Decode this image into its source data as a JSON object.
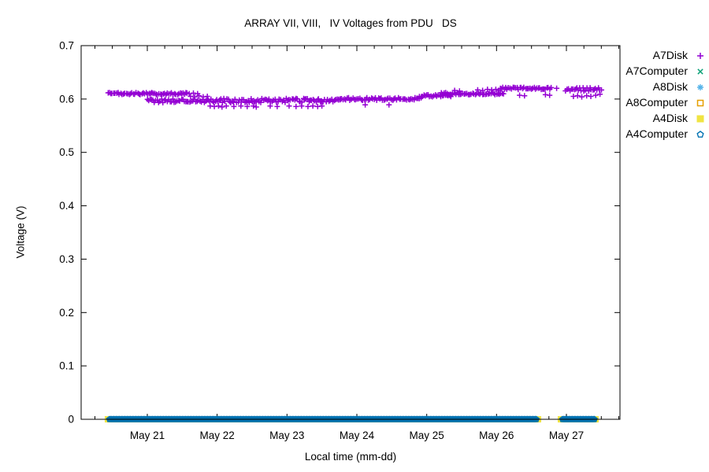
{
  "chart_data": {
    "type": "scatter",
    "title": "ARRAY VII, VIII,   IV Voltages from PDU   DS",
    "xlabel": "Local time (mm-dd)",
    "ylabel": "Voltage (V)",
    "grid": false,
    "legend_position": "outside-top-right",
    "x_axis": {
      "unit": "day-of-May",
      "min": 20.053,
      "max": 27.767,
      "major_ticks": [
        21,
        22,
        23,
        24,
        25,
        26,
        27
      ],
      "major_tick_labels": [
        "May 21",
        "May 22",
        "May 23",
        "May 24",
        "May 25",
        "May 26",
        "May 27"
      ],
      "minor_tick_interval": 0.25
    },
    "y_axis": {
      "min": 0,
      "max": 0.7,
      "major_ticks": [
        0,
        0.1,
        0.2,
        0.3,
        0.4,
        0.5,
        0.6,
        0.7
      ],
      "tick_labels": [
        "0",
        "0.1",
        "0.2",
        "0.3",
        "0.4",
        "0.5",
        "0.6",
        "0.7"
      ]
    },
    "series": [
      {
        "name": "A7Disk",
        "color": "#9400d3",
        "marker": "plus",
        "bands": [
          [
            20.436,
            21.58,
            0.61,
            0.002
          ],
          [
            21.0,
            23.78,
            0.597,
            0.004
          ],
          [
            23.74,
            24.93,
            0.6,
            0.0025
          ],
          [
            24.9,
            25.35,
            0.606,
            0.002
          ],
          [
            25.21,
            26.12,
            0.61,
            0.002
          ],
          [
            26.05,
            26.79,
            0.62,
            0.002
          ],
          [
            26.99,
            27.5,
            0.618,
            0.003
          ]
        ],
        "points": [
          [
            21.9,
            0.587
          ],
          [
            21.96,
            0.586
          ],
          [
            22.02,
            0.587
          ],
          [
            22.07,
            0.585
          ],
          [
            22.13,
            0.587
          ],
          [
            22.24,
            0.586
          ],
          [
            22.34,
            0.587
          ],
          [
            22.43,
            0.586
          ],
          [
            22.52,
            0.587
          ],
          [
            22.56,
            0.585
          ],
          [
            22.76,
            0.587
          ],
          [
            22.86,
            0.586
          ],
          [
            23.03,
            0.587
          ],
          [
            23.13,
            0.586
          ],
          [
            23.21,
            0.587
          ],
          [
            23.3,
            0.586
          ],
          [
            23.37,
            0.587
          ],
          [
            23.44,
            0.586
          ],
          [
            23.5,
            0.587
          ],
          [
            24.12,
            0.589
          ],
          [
            24.46,
            0.589
          ],
          [
            21.6,
            0.61
          ],
          [
            21.66,
            0.611
          ],
          [
            21.72,
            0.61
          ],
          [
            21.62,
            0.605
          ],
          [
            21.68,
            0.604
          ],
          [
            21.74,
            0.606
          ],
          [
            21.8,
            0.604
          ],
          [
            21.86,
            0.605
          ],
          [
            25.4,
            0.616
          ],
          [
            25.47,
            0.615
          ],
          [
            25.73,
            0.617
          ],
          [
            25.8,
            0.616
          ],
          [
            25.87,
            0.618
          ],
          [
            25.93,
            0.617
          ],
          [
            25.99,
            0.618
          ],
          [
            26.03,
            0.616
          ],
          [
            26.86,
            0.62
          ],
          [
            26.33,
            0.607
          ],
          [
            26.4,
            0.606
          ],
          [
            26.7,
            0.608
          ],
          [
            26.76,
            0.607
          ],
          [
            27.1,
            0.605
          ],
          [
            27.16,
            0.606
          ],
          [
            27.22,
            0.604
          ],
          [
            27.29,
            0.606
          ],
          [
            27.35,
            0.605
          ],
          [
            27.42,
            0.607
          ],
          [
            27.48,
            0.609
          ]
        ]
      },
      {
        "name": "A7Computer",
        "color": "#009e73",
        "marker": "cross",
        "bands": [],
        "points": []
      },
      {
        "name": "A8Disk",
        "color": "#56b4e9",
        "marker": "asterisk",
        "bands": [],
        "points": []
      },
      {
        "name": "A8Computer",
        "color": "#e69f00",
        "marker": "open-square",
        "bands": [],
        "points": []
      },
      {
        "name": "A4Disk",
        "color": "#f0e442",
        "marker": "filled-square",
        "bands": [
          [
            20.436,
            26.594,
            0.0,
            0
          ],
          [
            26.921,
            27.428,
            0.0,
            0
          ]
        ],
        "points": []
      },
      {
        "name": "A4Computer",
        "color": "#0072b2",
        "marker": "open-pentagon",
        "bands": [
          [
            20.436,
            26.594,
            0.0,
            0
          ],
          [
            26.921,
            27.428,
            0.0,
            0
          ]
        ],
        "points": []
      }
    ]
  },
  "legend": {
    "items": [
      {
        "label": "A7Disk",
        "marker": "plus",
        "color": "#9400d3"
      },
      {
        "label": "A7Computer",
        "marker": "cross",
        "color": "#009e73"
      },
      {
        "label": "A8Disk",
        "marker": "asterisk",
        "color": "#56b4e9"
      },
      {
        "label": "A8Computer",
        "marker": "open-square",
        "color": "#e69f00"
      },
      {
        "label": "A4Disk",
        "marker": "filled-square",
        "color": "#f0e442"
      },
      {
        "label": "A4Computer",
        "marker": "open-pentagon",
        "color": "#0072b2"
      }
    ]
  }
}
